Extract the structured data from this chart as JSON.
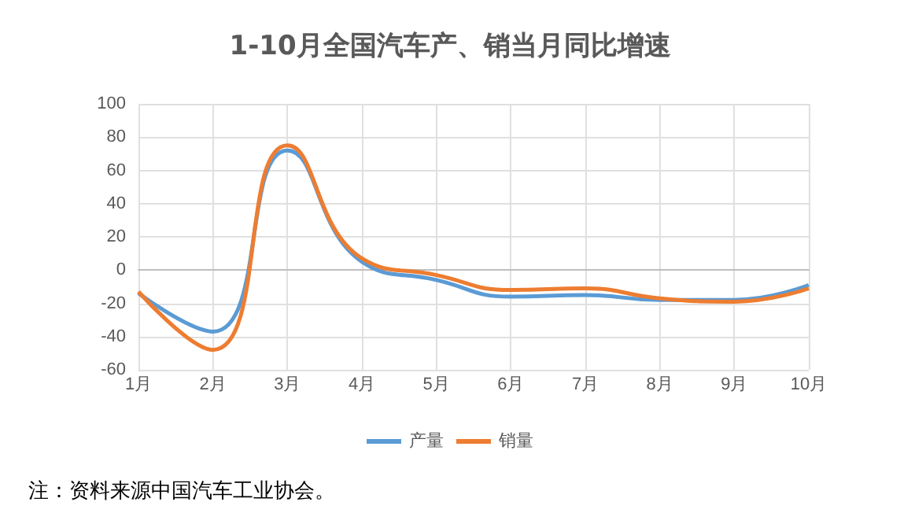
{
  "chart_data": {
    "type": "line",
    "title": "1-10月全国汽车产、销当月同比增速",
    "categories": [
      "1月",
      "2月",
      "3月",
      "4月",
      "5月",
      "6月",
      "7月",
      "8月",
      "9月",
      "10月"
    ],
    "series": [
      {
        "name": "产量",
        "color": "#5b9bd5",
        "values": [
          -14,
          -37,
          72,
          5,
          -6,
          -16,
          -15,
          -18,
          -18,
          -9
        ]
      },
      {
        "name": "销量",
        "color": "#ed7d31",
        "values": [
          -13,
          -48,
          75,
          7,
          -3,
          -12,
          -11,
          -17,
          -19,
          -11
        ]
      }
    ],
    "ylim": [
      -60,
      100
    ],
    "yticks": [
      -60,
      -40,
      -20,
      0,
      20,
      40,
      60,
      80,
      100
    ],
    "grid": true,
    "legend": "bottom",
    "marker": "none",
    "line_style": "solid",
    "annotations": [
      "注：资料来源中国汽车工业协会。"
    ]
  }
}
